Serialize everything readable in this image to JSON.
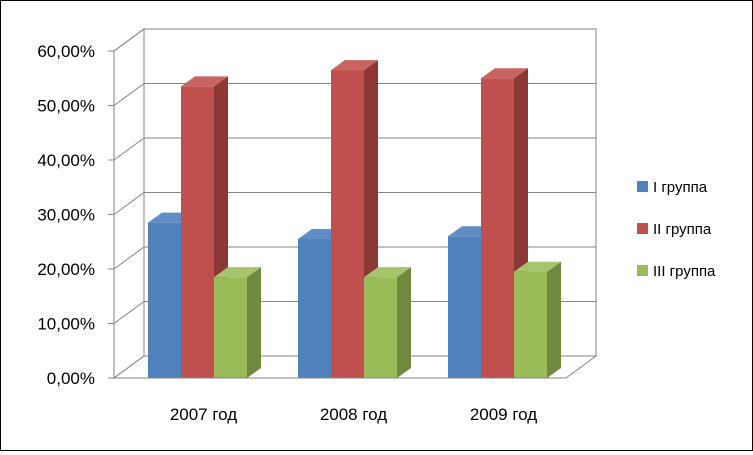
{
  "chart_data": {
    "type": "bar",
    "categories": [
      "2007 год",
      "2008 год",
      "2009 год"
    ],
    "series": [
      {
        "name": "I группа",
        "values": [
          28.5,
          25.5,
          26.0
        ],
        "color": "#4F81BD",
        "side_color": "#385D8A",
        "top_color": "#5F8DC6"
      },
      {
        "name": "II группа",
        "values": [
          53.5,
          56.5,
          55.0
        ],
        "color": "#C0504D",
        "side_color": "#8C3836",
        "top_color": "#C96462"
      },
      {
        "name": "III группа",
        "values": [
          18.5,
          18.5,
          19.5
        ],
        "color": "#9BBB59",
        "side_color": "#71893F",
        "top_color": "#A7C46C"
      }
    ],
    "y_ticks": [
      "0,00%",
      "10,00%",
      "20,00%",
      "30,00%",
      "40,00%",
      "50,00%",
      "60,00%"
    ],
    "ylim": [
      0,
      60
    ],
    "grid": true,
    "legend_position": "right",
    "bar_style": "3d-clustered-column"
  }
}
